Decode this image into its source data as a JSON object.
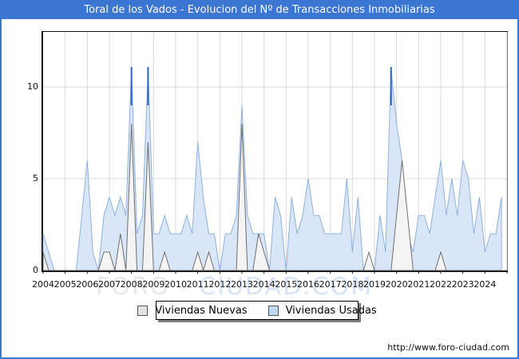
{
  "window": {
    "title": "Toral de los Vados - Evolucion del Nº de Transacciones Inmobiliarias",
    "title_bar_color": "#3b76d3"
  },
  "watermark": {
    "part1": "FORO",
    "separator": " - ",
    "part2": "CIUDAD.COM"
  },
  "footer": {
    "url": "http://www.foro-ciudad.com"
  },
  "legend": {
    "items": [
      {
        "label": "Viviendas Nuevas",
        "swatch": "#e3e3e3",
        "border": "#555555"
      },
      {
        "label": "Viviendas Usadas",
        "swatch": "#bdd7f3",
        "border": "#555555"
      }
    ]
  },
  "chart_data": {
    "type": "area",
    "title": "Toral de los Vados - Evolucion del Nº de Transacciones Inmobiliarias",
    "x_start": 2004,
    "x_step_years": 0.25,
    "x_unit": "quarter",
    "categories_years": [
      "2004",
      "2005",
      "2006",
      "2007",
      "2008",
      "2009",
      "2010",
      "2011",
      "2012",
      "2013",
      "2014",
      "2015",
      "2016",
      "2017",
      "2018",
      "2019",
      "2020",
      "2021",
      "2022",
      "2023",
      "2024"
    ],
    "ylabel_ticks": [
      0,
      5,
      10
    ],
    "ylim": [
      0,
      13
    ],
    "grid": true,
    "legend_position": "bottom",
    "series": [
      {
        "name": "Viviendas Nuevas",
        "fill": "#f4f4f4",
        "stroke": "#6f6f6f",
        "values": [
          1,
          0,
          0,
          0,
          0,
          0,
          0,
          0,
          0,
          0,
          0,
          1,
          1,
          0,
          2,
          0,
          8,
          0,
          0,
          7,
          0,
          0,
          1,
          0,
          0,
          0,
          0,
          0,
          1,
          0,
          1,
          0,
          0,
          0,
          0,
          0,
          8,
          0,
          0,
          2,
          1,
          0,
          0,
          0,
          0,
          0,
          0,
          0,
          0,
          0,
          0,
          0,
          0,
          0,
          0,
          0,
          0,
          0,
          0,
          1,
          0,
          0,
          0,
          0,
          3,
          6,
          3,
          0,
          0,
          0,
          0,
          0,
          1,
          0,
          0,
          0,
          0,
          0,
          0,
          0,
          0,
          0,
          0,
          0
        ]
      },
      {
        "name": "Viviendas Usadas",
        "fill": "#d9e6f8",
        "stroke": "#8fb1e1",
        "values": [
          2,
          1,
          0,
          0,
          0,
          0,
          0,
          3,
          6,
          1,
          0,
          3,
          4,
          3,
          4,
          3,
          11,
          2,
          3,
          11,
          2,
          2,
          3,
          2,
          2,
          2,
          3,
          2,
          7,
          4,
          2,
          2,
          0,
          2,
          2,
          3,
          9,
          3,
          2,
          2,
          2,
          0,
          4,
          3,
          0,
          4,
          2,
          3,
          5,
          3,
          3,
          2,
          2,
          2,
          2,
          5,
          1,
          4,
          0,
          0,
          0,
          3,
          1,
          11,
          8,
          6,
          2,
          1,
          3,
          3,
          2,
          4,
          6,
          3,
          5,
          3,
          6,
          5,
          2,
          4,
          1,
          2,
          2,
          4
        ]
      }
    ],
    "peak_accent_color": "#2f62c4",
    "gridline_color": "#d9d9d9"
  }
}
